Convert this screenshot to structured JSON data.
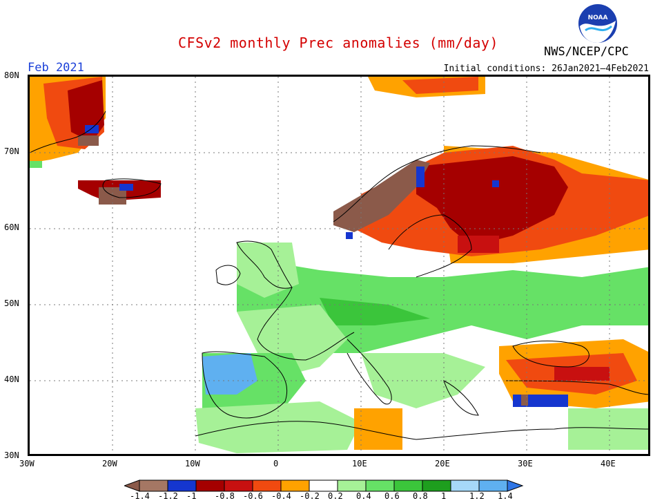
{
  "title": "CFSv2 monthly Prec anomalies (mm/day)",
  "valid_month": "Feb 2021",
  "initial_conditions": "Initial conditions: 26Jan2021–4Feb2021",
  "agency": "NWS/NCEP/CPC",
  "logo_text": "NOAA",
  "map": {
    "lon_range": [
      -30,
      45
    ],
    "lat_range": [
      30,
      80
    ],
    "lon_ticks": [
      "30W",
      "20W",
      "10W",
      "0",
      "10E",
      "20E",
      "30E",
      "40E"
    ],
    "lat_ticks": [
      "80N",
      "70N",
      "60N",
      "50N",
      "40N",
      "30N"
    ],
    "gridlines": "dotted"
  },
  "legend": {
    "labels": [
      "-1.4",
      "-1.2",
      "-1",
      "-0.8",
      "-0.6",
      "-0.4",
      "-0.2",
      "0.2",
      "0.4",
      "0.6",
      "0.8",
      "1",
      "1.2",
      "1.4"
    ],
    "colors": [
      "#8b5a4a",
      "#a57764",
      "#1536cf",
      "#a50000",
      "#c81010",
      "#f04a10",
      "#ffa200",
      "#ffffff",
      "#a6f197",
      "#66e166",
      "#3bc53b",
      "#1e9e1e",
      "#a6d8f8",
      "#5fb0f0",
      "#2f76e6"
    ]
  },
  "anomaly_regions": [
    {
      "name": "Greenland / Arctic Atlantic",
      "color": "#a50000"
    },
    {
      "name": "Scandinavia west coast",
      "color": "#8b5a4a"
    },
    {
      "name": "Finland / NW Russia",
      "color": "#a50000"
    },
    {
      "name": "Russia east",
      "color": "#ffa200"
    },
    {
      "name": "Central Europe",
      "color": "#66e166"
    },
    {
      "name": "Iberia west",
      "color": "#5fb0f0"
    },
    {
      "name": "Turkey",
      "color": "#f04a10"
    }
  ]
}
